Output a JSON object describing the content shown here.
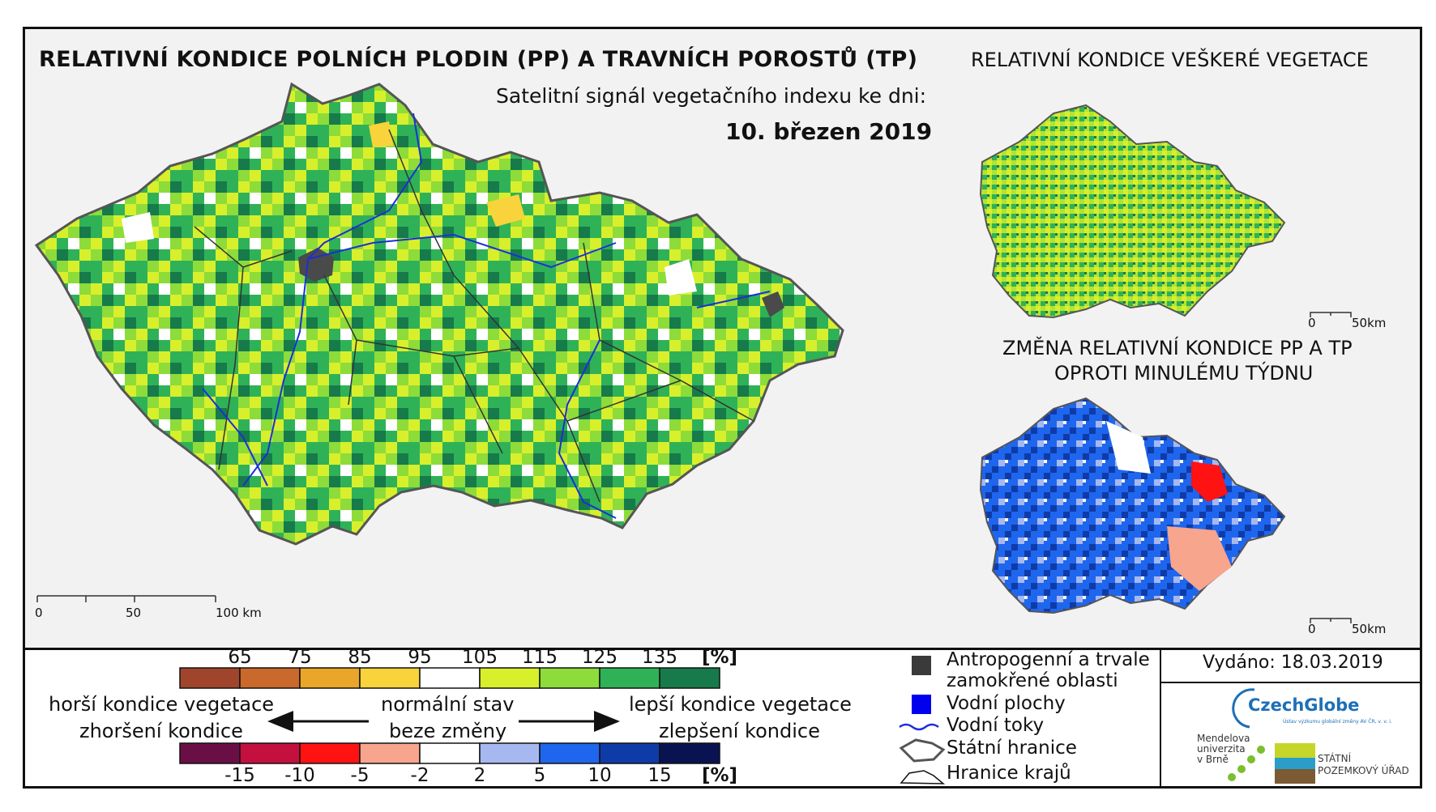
{
  "title": "RELATIVNÍ KONDICE POLNÍCH PLODIN (PP) A TRAVNÍCH POROSTŮ (TP)",
  "subtitle": "Satelitní signál vegetačního indexu ke dni:",
  "date": "10. březen 2019",
  "inset_vegetation": {
    "title": "RELATIVNÍ KONDICE VEŠKERÉ VEGETACE",
    "scale_labels": [
      "0",
      "50km"
    ]
  },
  "inset_change": {
    "title_line1": "ZMĚNA RELATIVNÍ KONDICE PP A TP",
    "title_line2": "OPROTI MINULÉMU TÝDNU",
    "scale_labels": [
      "0",
      "50km"
    ]
  },
  "main_scale": [
    "0",
    "50",
    "100 km"
  ],
  "legend_condition": {
    "ticks": [
      "65",
      "75",
      "85",
      "95",
      "105",
      "115",
      "125",
      "135"
    ],
    "unit": "[%]",
    "colors": [
      "#a0452c",
      "#c9692b",
      "#e9a629",
      "#f8d33b",
      "#ffffff",
      "#d8ef2c",
      "#8ddc3a",
      "#2fb257",
      "#177a4a"
    ]
  },
  "legend_change": {
    "ticks": [
      "-15",
      "-10",
      "-5",
      "-2",
      "2",
      "5",
      "10",
      "15"
    ],
    "unit": "[%]",
    "colors": [
      "#6a0f45",
      "#c4103e",
      "#ff1212",
      "#f7a58d",
      "#ffffff",
      "#a7b8f0",
      "#1f66ee",
      "#0f3ba8",
      "#0a1352"
    ]
  },
  "legend_arrows": {
    "worse_1": "horší kondice vegetace",
    "worse_2": "zhoršení kondice",
    "normal_1": "normální stav",
    "normal_2": "beze změny",
    "better_1": "lepší kondice vegetace",
    "better_2": "zlepšení kondice"
  },
  "legend_symbols": {
    "anthropogenic_1": "Antropogenní a trvale",
    "anthropogenic_2": "zamokřené oblasti",
    "water_areas": "Vodní plochy",
    "rivers": "Vodní toky",
    "state_border": "Státní hranice",
    "region_border": "Hranice krajů"
  },
  "issued": "Vydáno: 18.03.2019",
  "logos": {
    "czechglobe": "CzechGlobe",
    "czechglobe_sub": "Ústav výzkumu globální změny AV ČR, v. v. i.",
    "mendel": "Mendelova\nuniverzita\nv Brně",
    "spu": "STÁTNÍ\nPOZEMKOVÝ ÚŘAD"
  }
}
